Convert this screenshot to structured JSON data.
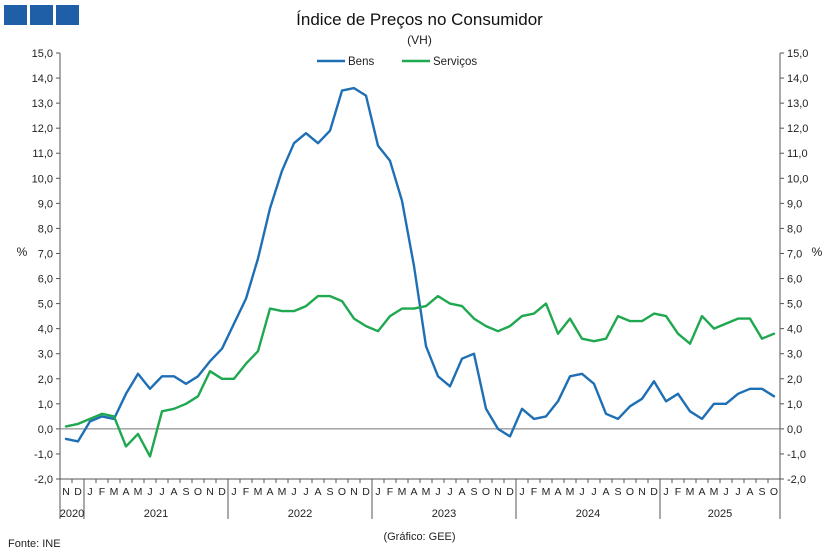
{
  "chart_data": {
    "type": "line",
    "title": "Índice de Preços no Consumidor",
    "subtitle": "(VH)",
    "ylabel_left": "%",
    "ylabel_right": "%",
    "ylim": [
      -2.0,
      15.0
    ],
    "ytick_step": 1.0,
    "legend_position": "top-center",
    "months": [
      "N",
      "D",
      "J",
      "F",
      "M",
      "A",
      "M",
      "J",
      "J",
      "A",
      "S",
      "O",
      "N",
      "D",
      "J",
      "F",
      "M",
      "A",
      "M",
      "J",
      "J",
      "A",
      "S",
      "O",
      "N",
      "D",
      "J",
      "F",
      "M",
      "A",
      "M",
      "J",
      "J",
      "A",
      "S",
      "O",
      "N",
      "D",
      "J",
      "F",
      "M",
      "A",
      "M",
      "J",
      "J",
      "A",
      "S",
      "O",
      "N",
      "D",
      "J",
      "F",
      "M",
      "A",
      "M",
      "J",
      "J",
      "A",
      "S",
      "O"
    ],
    "years": [
      {
        "label": "2020",
        "start": 0,
        "count": 2
      },
      {
        "label": "2021",
        "start": 2,
        "count": 12
      },
      {
        "label": "2022",
        "start": 14,
        "count": 12
      },
      {
        "label": "2023",
        "start": 26,
        "count": 12
      },
      {
        "label": "2024",
        "start": 38,
        "count": 12
      },
      {
        "label": "2025",
        "start": 50,
        "count": 10
      }
    ],
    "series": [
      {
        "name": "Bens",
        "color": "#1f6fb5",
        "values": [
          -0.4,
          -0.5,
          0.3,
          0.5,
          0.4,
          1.4,
          2.2,
          1.6,
          2.1,
          2.1,
          1.8,
          2.1,
          2.7,
          3.2,
          4.2,
          5.2,
          6.8,
          8.8,
          10.3,
          11.4,
          11.8,
          11.4,
          11.9,
          13.5,
          13.6,
          13.3,
          11.3,
          10.7,
          9.1,
          6.5,
          3.3,
          2.1,
          1.7,
          2.8,
          3.0,
          0.8,
          0.0,
          -0.3,
          0.8,
          0.4,
          0.5,
          1.1,
          2.1,
          2.2,
          1.8,
          0.6,
          0.4,
          0.9,
          1.2,
          1.9,
          1.1,
          1.4,
          0.7,
          0.4,
          1.0,
          1.0,
          1.4,
          1.6,
          1.6,
          1.3
        ]
      },
      {
        "name": "Serviços",
        "color": "#1fa84f",
        "values": [
          0.1,
          0.2,
          0.4,
          0.6,
          0.5,
          -0.7,
          -0.2,
          -1.1,
          0.7,
          0.8,
          1.0,
          1.3,
          2.3,
          2.0,
          2.0,
          2.6,
          3.1,
          4.8,
          4.7,
          4.7,
          4.9,
          5.3,
          5.3,
          5.1,
          4.4,
          4.1,
          3.9,
          4.5,
          4.8,
          4.8,
          4.9,
          5.3,
          5.0,
          4.9,
          4.4,
          4.1,
          3.9,
          4.1,
          4.5,
          4.6,
          5.0,
          3.8,
          4.4,
          3.6,
          3.5,
          3.6,
          4.5,
          4.3,
          4.3,
          4.6,
          4.5,
          3.8,
          3.4,
          4.5,
          4.0,
          4.2,
          4.4,
          4.4,
          3.6,
          3.8
        ]
      }
    ]
  },
  "footer": {
    "source": "Fonte: INE",
    "credit": "(Gráfico: GEE)"
  }
}
